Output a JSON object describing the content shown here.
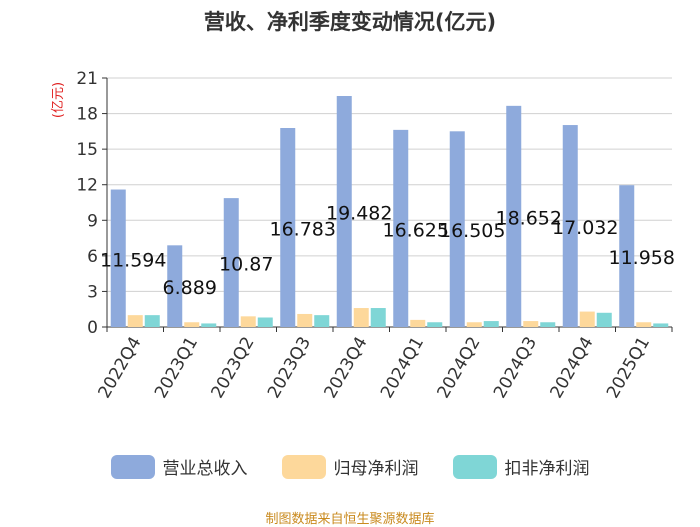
{
  "chart_data": {
    "type": "bar",
    "title": "营收、净利季度变动情况(亿元)",
    "ylabel": "(亿元)",
    "ylim": [
      0,
      21
    ],
    "yticks": [
      0,
      3,
      6,
      9,
      12,
      15,
      18,
      21
    ],
    "categories": [
      "2022Q4",
      "2023Q1",
      "2023Q2",
      "2023Q3",
      "2023Q4",
      "2024Q1",
      "2024Q2",
      "2024Q3",
      "2024Q4",
      "2025Q1"
    ],
    "series": [
      {
        "name": "营业总收入",
        "color": "#8eaadc",
        "values": [
          11.594,
          6.889,
          10.87,
          16.783,
          19.482,
          16.625,
          16.505,
          18.652,
          17.032,
          11.958
        ],
        "labels": [
          "11.594",
          "6.889",
          "10.87",
          "16.783",
          "19.482",
          "16.625",
          "16.505",
          "18.652",
          "17.032",
          "11.958"
        ]
      },
      {
        "name": "归母净利润",
        "color": "#fdd89b",
        "values": [
          1.0,
          0.4,
          0.9,
          1.1,
          1.6,
          0.6,
          0.4,
          0.5,
          1.3,
          0.4
        ]
      },
      {
        "name": "扣非净利润",
        "color": "#7fd6d6",
        "values": [
          1.0,
          0.3,
          0.8,
          1.0,
          1.6,
          0.4,
          0.5,
          0.4,
          1.2,
          0.3
        ]
      }
    ],
    "legend_position": "bottom",
    "grid": true
  },
  "source": "制图数据来自恒生聚源数据库"
}
